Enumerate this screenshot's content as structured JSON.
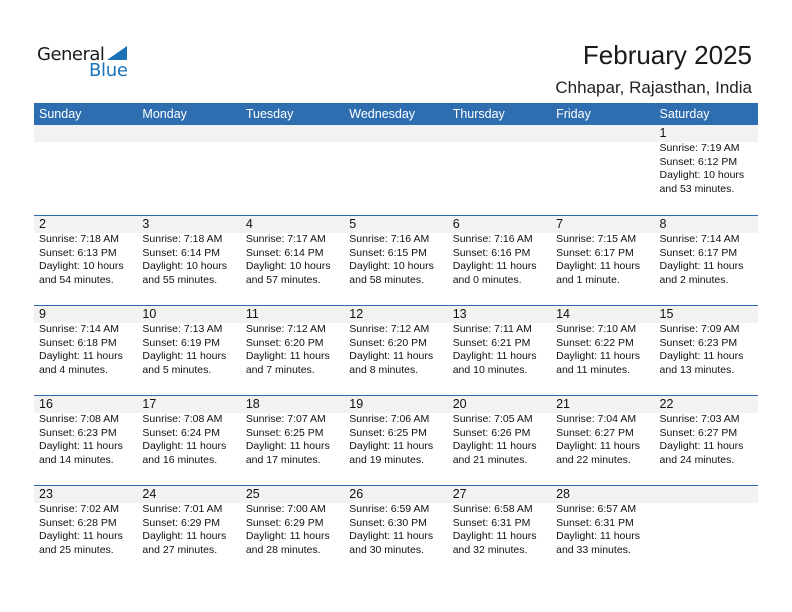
{
  "logo": {
    "line1": "General",
    "line2": "Blue"
  },
  "header": {
    "title": "February 2025",
    "location": "Chhapar, Rajasthan, India"
  },
  "colors": {
    "accent": "#2e6eb0",
    "day_band": "#f2f2f2"
  },
  "weekdays": [
    "Sunday",
    "Monday",
    "Tuesday",
    "Wednesday",
    "Thursday",
    "Friday",
    "Saturday"
  ],
  "weeks": [
    [
      null,
      null,
      null,
      null,
      null,
      null,
      {
        "day": "1",
        "sunrise": "Sunrise: 7:19 AM",
        "sunset": "Sunset: 6:12 PM",
        "daylight1": "Daylight: 10 hours",
        "daylight2": "and 53 minutes."
      }
    ],
    [
      {
        "day": "2",
        "sunrise": "Sunrise: 7:18 AM",
        "sunset": "Sunset: 6:13 PM",
        "daylight1": "Daylight: 10 hours",
        "daylight2": "and 54 minutes."
      },
      {
        "day": "3",
        "sunrise": "Sunrise: 7:18 AM",
        "sunset": "Sunset: 6:14 PM",
        "daylight1": "Daylight: 10 hours",
        "daylight2": "and 55 minutes."
      },
      {
        "day": "4",
        "sunrise": "Sunrise: 7:17 AM",
        "sunset": "Sunset: 6:14 PM",
        "daylight1": "Daylight: 10 hours",
        "daylight2": "and 57 minutes."
      },
      {
        "day": "5",
        "sunrise": "Sunrise: 7:16 AM",
        "sunset": "Sunset: 6:15 PM",
        "daylight1": "Daylight: 10 hours",
        "daylight2": "and 58 minutes."
      },
      {
        "day": "6",
        "sunrise": "Sunrise: 7:16 AM",
        "sunset": "Sunset: 6:16 PM",
        "daylight1": "Daylight: 11 hours",
        "daylight2": "and 0 minutes."
      },
      {
        "day": "7",
        "sunrise": "Sunrise: 7:15 AM",
        "sunset": "Sunset: 6:17 PM",
        "daylight1": "Daylight: 11 hours",
        "daylight2": "and 1 minute."
      },
      {
        "day": "8",
        "sunrise": "Sunrise: 7:14 AM",
        "sunset": "Sunset: 6:17 PM",
        "daylight1": "Daylight: 11 hours",
        "daylight2": "and 2 minutes."
      }
    ],
    [
      {
        "day": "9",
        "sunrise": "Sunrise: 7:14 AM",
        "sunset": "Sunset: 6:18 PM",
        "daylight1": "Daylight: 11 hours",
        "daylight2": "and 4 minutes."
      },
      {
        "day": "10",
        "sunrise": "Sunrise: 7:13 AM",
        "sunset": "Sunset: 6:19 PM",
        "daylight1": "Daylight: 11 hours",
        "daylight2": "and 5 minutes."
      },
      {
        "day": "11",
        "sunrise": "Sunrise: 7:12 AM",
        "sunset": "Sunset: 6:20 PM",
        "daylight1": "Daylight: 11 hours",
        "daylight2": "and 7 minutes."
      },
      {
        "day": "12",
        "sunrise": "Sunrise: 7:12 AM",
        "sunset": "Sunset: 6:20 PM",
        "daylight1": "Daylight: 11 hours",
        "daylight2": "and 8 minutes."
      },
      {
        "day": "13",
        "sunrise": "Sunrise: 7:11 AM",
        "sunset": "Sunset: 6:21 PM",
        "daylight1": "Daylight: 11 hours",
        "daylight2": "and 10 minutes."
      },
      {
        "day": "14",
        "sunrise": "Sunrise: 7:10 AM",
        "sunset": "Sunset: 6:22 PM",
        "daylight1": "Daylight: 11 hours",
        "daylight2": "and 11 minutes."
      },
      {
        "day": "15",
        "sunrise": "Sunrise: 7:09 AM",
        "sunset": "Sunset: 6:23 PM",
        "daylight1": "Daylight: 11 hours",
        "daylight2": "and 13 minutes."
      }
    ],
    [
      {
        "day": "16",
        "sunrise": "Sunrise: 7:08 AM",
        "sunset": "Sunset: 6:23 PM",
        "daylight1": "Daylight: 11 hours",
        "daylight2": "and 14 minutes."
      },
      {
        "day": "17",
        "sunrise": "Sunrise: 7:08 AM",
        "sunset": "Sunset: 6:24 PM",
        "daylight1": "Daylight: 11 hours",
        "daylight2": "and 16 minutes."
      },
      {
        "day": "18",
        "sunrise": "Sunrise: 7:07 AM",
        "sunset": "Sunset: 6:25 PM",
        "daylight1": "Daylight: 11 hours",
        "daylight2": "and 17 minutes."
      },
      {
        "day": "19",
        "sunrise": "Sunrise: 7:06 AM",
        "sunset": "Sunset: 6:25 PM",
        "daylight1": "Daylight: 11 hours",
        "daylight2": "and 19 minutes."
      },
      {
        "day": "20",
        "sunrise": "Sunrise: 7:05 AM",
        "sunset": "Sunset: 6:26 PM",
        "daylight1": "Daylight: 11 hours",
        "daylight2": "and 21 minutes."
      },
      {
        "day": "21",
        "sunrise": "Sunrise: 7:04 AM",
        "sunset": "Sunset: 6:27 PM",
        "daylight1": "Daylight: 11 hours",
        "daylight2": "and 22 minutes."
      },
      {
        "day": "22",
        "sunrise": "Sunrise: 7:03 AM",
        "sunset": "Sunset: 6:27 PM",
        "daylight1": "Daylight: 11 hours",
        "daylight2": "and 24 minutes."
      }
    ],
    [
      {
        "day": "23",
        "sunrise": "Sunrise: 7:02 AM",
        "sunset": "Sunset: 6:28 PM",
        "daylight1": "Daylight: 11 hours",
        "daylight2": "and 25 minutes."
      },
      {
        "day": "24",
        "sunrise": "Sunrise: 7:01 AM",
        "sunset": "Sunset: 6:29 PM",
        "daylight1": "Daylight: 11 hours",
        "daylight2": "and 27 minutes."
      },
      {
        "day": "25",
        "sunrise": "Sunrise: 7:00 AM",
        "sunset": "Sunset: 6:29 PM",
        "daylight1": "Daylight: 11 hours",
        "daylight2": "and 28 minutes."
      },
      {
        "day": "26",
        "sunrise": "Sunrise: 6:59 AM",
        "sunset": "Sunset: 6:30 PM",
        "daylight1": "Daylight: 11 hours",
        "daylight2": "and 30 minutes."
      },
      {
        "day": "27",
        "sunrise": "Sunrise: 6:58 AM",
        "sunset": "Sunset: 6:31 PM",
        "daylight1": "Daylight: 11 hours",
        "daylight2": "and 32 minutes."
      },
      {
        "day": "28",
        "sunrise": "Sunrise: 6:57 AM",
        "sunset": "Sunset: 6:31 PM",
        "daylight1": "Daylight: 11 hours",
        "daylight2": "and 33 minutes."
      },
      null
    ]
  ]
}
